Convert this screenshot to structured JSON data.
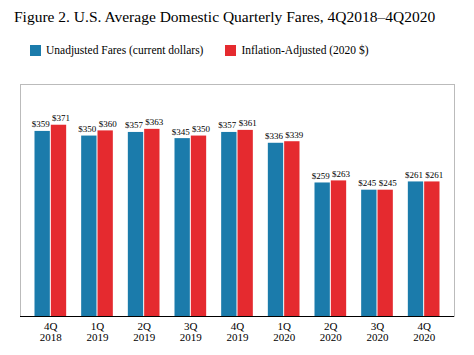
{
  "chart_data": {
    "type": "bar",
    "title": "Figure 2. U.S. Average Domestic Quarterly Fares, 4Q2018–4Q2020",
    "categories": [
      "4Q\n2018",
      "1Q\n2019",
      "2Q\n2019",
      "3Q\n2019",
      "4Q\n2019",
      "1Q\n2020",
      "2Q\n2020",
      "3Q\n2020",
      "4Q\n2020"
    ],
    "series": [
      {
        "name": "Unadjusted Fares (current dollars)",
        "color": "#1b7bab",
        "values": [
          359,
          350,
          357,
          345,
          357,
          336,
          259,
          245,
          261
        ],
        "value_labels": [
          "$359",
          "$350",
          "$357",
          "$345",
          "$357",
          "$336",
          "$259",
          "$245",
          "$261"
        ]
      },
      {
        "name": "Inflation-Adjusted (2020 $)",
        "color": "#e52a2f",
        "values": [
          371,
          360,
          363,
          350,
          361,
          339,
          263,
          245,
          261
        ],
        "value_labels": [
          "$371",
          "$360",
          "$363",
          "$350",
          "$361",
          "$339",
          "$263",
          "$245",
          "$261"
        ]
      }
    ],
    "ylim": [
      0,
      450
    ],
    "legend": "top",
    "data_labels": true,
    "tick_labels": "x"
  }
}
